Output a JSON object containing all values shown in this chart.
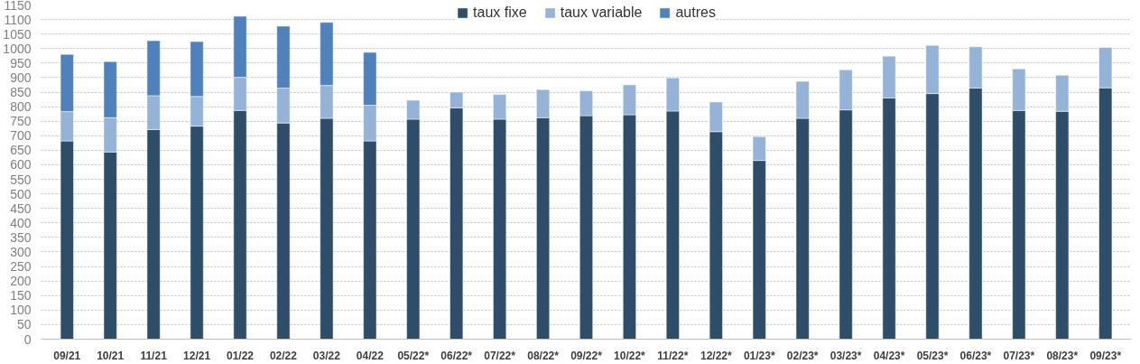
{
  "chart_data": {
    "type": "bar",
    "stacked": true,
    "categories": [
      "09/21",
      "10/21",
      "11/21",
      "12/21",
      "01/22",
      "02/22",
      "03/22",
      "04/22",
      "05/22*",
      "06/22*",
      "07/22*",
      "08/22*",
      "09/22*",
      "10/22*",
      "11/22*",
      "12/22*",
      "01/23*",
      "02/23*",
      "03/23*",
      "04/23*",
      "05/23*",
      "06/23*",
      "07/23*",
      "08/23*",
      "09/23*"
    ],
    "series": [
      {
        "name": "taux fixe",
        "color": "#2e4d69",
        "values": [
          682,
          644,
          721,
          733,
          787,
          744,
          760,
          682,
          757,
          796,
          757,
          762,
          769,
          772,
          785,
          714,
          615,
          760,
          789,
          830,
          845,
          864,
          787,
          784,
          865
        ]
      },
      {
        "name": "taux variable",
        "color": "#95b3d7",
        "values": [
          101,
          118,
          117,
          102,
          114,
          120,
          113,
          123,
          65,
          54,
          85,
          97,
          86,
          103,
          114,
          102,
          82,
          127,
          138,
          144,
          166,
          142,
          143,
          124,
          139
        ]
      },
      {
        "name": "autres",
        "color": "#4f81bd",
        "values": [
          197,
          193,
          189,
          189,
          210,
          213,
          217,
          182,
          null,
          null,
          null,
          null,
          null,
          null,
          null,
          null,
          null,
          null,
          null,
          null,
          null,
          null,
          null,
          null,
          null
        ]
      }
    ],
    "ylim": [
      0,
      1150
    ],
    "yticks": [
      0,
      50,
      100,
      150,
      200,
      250,
      300,
      350,
      400,
      450,
      500,
      550,
      600,
      650,
      700,
      750,
      800,
      850,
      900,
      950,
      1000,
      1050,
      1100,
      1150
    ],
    "grid": "y",
    "legend": "top"
  }
}
